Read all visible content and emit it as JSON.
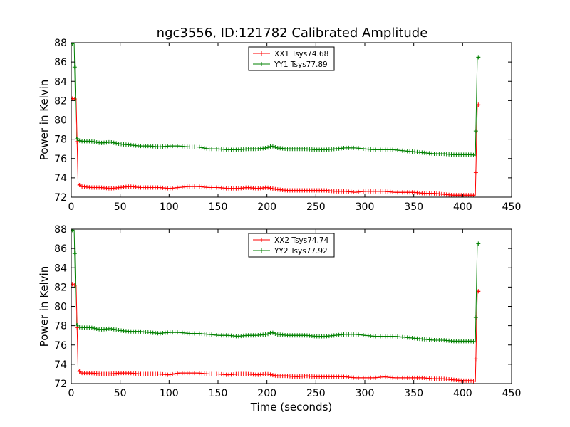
{
  "title": "ngc3556, ID:121782 Calibrated Amplitude",
  "colors": {
    "xx": "#ff0000",
    "yy": "#008000"
  },
  "chart_data": [
    {
      "type": "line",
      "xlabel": "",
      "ylabel": "Power in Kelvin",
      "xlim": [
        0,
        450
      ],
      "ylim": [
        72,
        88
      ],
      "xticks": [
        "0",
        "50",
        "100",
        "150",
        "200",
        "250",
        "300",
        "350",
        "400",
        "450"
      ],
      "yticks": [
        "72",
        "74",
        "76",
        "78",
        "80",
        "82",
        "84",
        "86",
        "88"
      ],
      "legend": "top-center",
      "series": [
        {
          "name": "XX1 Tsys74.68",
          "color": "#ff0000",
          "x": [
            1,
            3,
            5,
            7,
            10,
            20,
            30,
            40,
            50,
            60,
            70,
            80,
            90,
            100,
            110,
            120,
            130,
            140,
            150,
            160,
            170,
            180,
            190,
            200,
            205,
            210,
            220,
            230,
            240,
            250,
            260,
            270,
            280,
            290,
            300,
            310,
            320,
            330,
            340,
            350,
            360,
            370,
            380,
            390,
            400,
            410,
            413,
            415,
            418
          ],
          "y": [
            82.2,
            82.2,
            82.1,
            73.4,
            73.1,
            73.0,
            73.0,
            72.9,
            73.0,
            73.1,
            73.0,
            73.0,
            73.0,
            72.9,
            73.0,
            73.1,
            73.1,
            73.0,
            73.0,
            72.9,
            72.9,
            73.0,
            72.9,
            73.0,
            72.9,
            72.8,
            72.7,
            72.7,
            72.7,
            72.7,
            72.7,
            72.6,
            72.6,
            72.5,
            72.6,
            72.6,
            72.6,
            72.5,
            72.5,
            72.5,
            72.4,
            72.4,
            72.3,
            72.2,
            72.2,
            72.2,
            72.2,
            81.6,
            81.5
          ]
        },
        {
          "name": "YY1 Tsys77.89",
          "color": "#008000",
          "x": [
            1,
            3,
            5,
            7,
            10,
            20,
            30,
            40,
            50,
            60,
            70,
            80,
            90,
            100,
            110,
            120,
            130,
            140,
            150,
            160,
            170,
            180,
            190,
            200,
            205,
            210,
            220,
            230,
            240,
            250,
            260,
            270,
            280,
            290,
            300,
            310,
            320,
            330,
            340,
            350,
            360,
            370,
            380,
            390,
            400,
            410,
            413,
            415,
            418
          ],
          "y": [
            87.9,
            87.9,
            78.2,
            77.9,
            77.8,
            77.8,
            77.6,
            77.7,
            77.5,
            77.4,
            77.3,
            77.3,
            77.2,
            77.3,
            77.3,
            77.2,
            77.2,
            77.0,
            77.0,
            76.9,
            76.9,
            77.0,
            77.0,
            77.1,
            77.3,
            77.1,
            77.0,
            77.0,
            77.0,
            76.9,
            76.9,
            77.0,
            77.1,
            77.1,
            77.0,
            76.9,
            76.9,
            76.9,
            76.8,
            76.7,
            76.6,
            76.5,
            76.5,
            76.4,
            76.4,
            76.4,
            76.3,
            86.5,
            86.5
          ]
        }
      ]
    },
    {
      "type": "line",
      "xlabel": "Time (seconds)",
      "ylabel": "Power in Kelvin",
      "xlim": [
        0,
        450
      ],
      "ylim": [
        72,
        88
      ],
      "xticks": [
        "0",
        "50",
        "100",
        "150",
        "200",
        "250",
        "300",
        "350",
        "400",
        "450"
      ],
      "yticks": [
        "72",
        "74",
        "76",
        "78",
        "80",
        "82",
        "84",
        "86",
        "88"
      ],
      "legend": "top-center",
      "series": [
        {
          "name": "XX2 Tsys74.74",
          "color": "#ff0000",
          "x": [
            1,
            3,
            5,
            7,
            10,
            20,
            30,
            40,
            50,
            60,
            70,
            80,
            90,
            100,
            110,
            120,
            130,
            140,
            150,
            160,
            170,
            180,
            190,
            200,
            205,
            210,
            220,
            230,
            240,
            250,
            260,
            270,
            280,
            290,
            300,
            310,
            320,
            330,
            340,
            350,
            360,
            370,
            380,
            390,
            400,
            410,
            413,
            415,
            418
          ],
          "y": [
            82.3,
            82.2,
            82.2,
            73.4,
            73.1,
            73.1,
            73.0,
            73.0,
            73.1,
            73.1,
            73.0,
            73.0,
            73.0,
            72.9,
            73.1,
            73.1,
            73.1,
            73.0,
            73.0,
            72.9,
            73.0,
            73.0,
            72.9,
            73.0,
            72.9,
            72.8,
            72.8,
            72.7,
            72.8,
            72.7,
            72.7,
            72.7,
            72.7,
            72.6,
            72.6,
            72.6,
            72.7,
            72.6,
            72.6,
            72.6,
            72.6,
            72.5,
            72.5,
            72.4,
            72.3,
            72.3,
            72.2,
            81.6,
            81.5
          ]
        },
        {
          "name": "YY2 Tsys77.92",
          "color": "#008000",
          "x": [
            1,
            3,
            5,
            7,
            10,
            20,
            30,
            40,
            50,
            60,
            70,
            80,
            90,
            100,
            110,
            120,
            130,
            140,
            150,
            160,
            170,
            180,
            190,
            200,
            205,
            210,
            220,
            230,
            240,
            250,
            260,
            270,
            280,
            290,
            300,
            310,
            320,
            330,
            340,
            350,
            360,
            370,
            380,
            390,
            400,
            410,
            413,
            415,
            418
          ],
          "y": [
            87.9,
            87.9,
            78.2,
            77.9,
            77.8,
            77.8,
            77.6,
            77.7,
            77.5,
            77.4,
            77.4,
            77.3,
            77.2,
            77.3,
            77.3,
            77.2,
            77.2,
            77.1,
            77.0,
            77.0,
            76.9,
            77.0,
            77.0,
            77.1,
            77.3,
            77.1,
            77.0,
            77.0,
            77.0,
            76.9,
            76.9,
            77.0,
            77.1,
            77.1,
            77.0,
            76.9,
            76.9,
            76.9,
            76.8,
            76.7,
            76.6,
            76.5,
            76.5,
            76.4,
            76.4,
            76.4,
            76.3,
            86.5,
            86.5
          ]
        }
      ]
    }
  ]
}
